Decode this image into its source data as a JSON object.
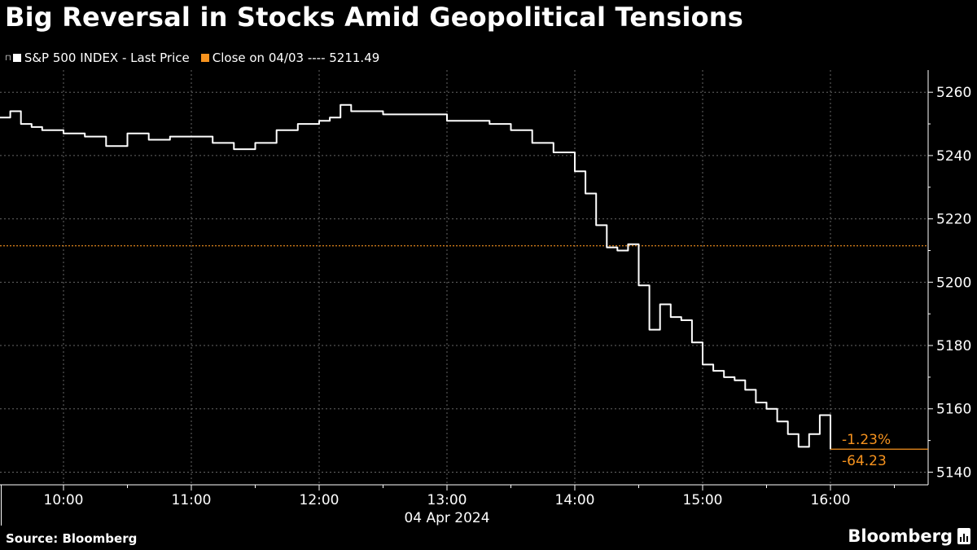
{
  "header": {
    "title": "Big Reversal in Stocks Amid Geopolitical Tensions"
  },
  "legend": {
    "pin_glyph": "⊓",
    "items": [
      {
        "label": "S&P 500 INDEX - Last Price",
        "color": "#ffffff"
      },
      {
        "label": "Close on 04/03 ---- 5211.49",
        "color": "#f7931e"
      }
    ]
  },
  "footer": {
    "source": "Source: Bloomberg",
    "brand": "Bloomberg"
  },
  "colors": {
    "background": "#000000",
    "line": "#ffffff",
    "reference": "#f7931e",
    "grid": "#666666",
    "axis": "#ffffff"
  },
  "chart_data": {
    "type": "line",
    "title": "Big Reversal in Stocks Amid Geopolitical Tensions",
    "xlabel": "04 Apr 2024",
    "ylabel": "",
    "x_ticks": [
      "10:00",
      "11:00",
      "12:00",
      "13:00",
      "14:00",
      "15:00",
      "16:00"
    ],
    "y_ticks": [
      5140,
      5160,
      5180,
      5200,
      5220,
      5240,
      5260
    ],
    "ylim": [
      5136,
      5267
    ],
    "grid": true,
    "legend_position": "top-left",
    "reference_line": {
      "label": "Close on 04/03",
      "value": 5211.49
    },
    "annotations": {
      "pct_change": "-1.23%",
      "abs_change": "-64.23",
      "last_value": 5147.26
    },
    "series": [
      {
        "name": "S&P 500 INDEX - Last Price",
        "x": [
          "09:30",
          "09:35",
          "09:40",
          "09:45",
          "09:50",
          "10:00",
          "10:10",
          "10:20",
          "10:30",
          "10:40",
          "10:50",
          "11:00",
          "11:10",
          "11:20",
          "11:30",
          "11:40",
          "11:50",
          "12:00",
          "12:05",
          "12:10",
          "12:15",
          "12:20",
          "12:30",
          "12:40",
          "12:50",
          "13:00",
          "13:10",
          "13:20",
          "13:30",
          "13:40",
          "13:50",
          "14:00",
          "14:05",
          "14:10",
          "14:15",
          "14:20",
          "14:25",
          "14:30",
          "14:35",
          "14:40",
          "14:45",
          "14:50",
          "14:55",
          "15:00",
          "15:05",
          "15:10",
          "15:15",
          "15:20",
          "15:25",
          "15:30",
          "15:35",
          "15:40",
          "15:45",
          "15:50",
          "15:55",
          "16:00"
        ],
        "y": [
          5252,
          5254,
          5250,
          5249,
          5248,
          5247,
          5246,
          5243,
          5247,
          5245,
          5246,
          5246,
          5244,
          5242,
          5244,
          5248,
          5250,
          5251,
          5252,
          5256,
          5254,
          5254,
          5253,
          5253,
          5253,
          5251,
          5251,
          5250,
          5248,
          5244,
          5241,
          5235,
          5228,
          5218,
          5211,
          5210,
          5212,
          5199,
          5185,
          5193,
          5189,
          5188,
          5181,
          5174,
          5172,
          5170,
          5169,
          5166,
          5162,
          5160,
          5156,
          5152,
          5148,
          5152,
          5158,
          5147.26
        ]
      }
    ]
  }
}
